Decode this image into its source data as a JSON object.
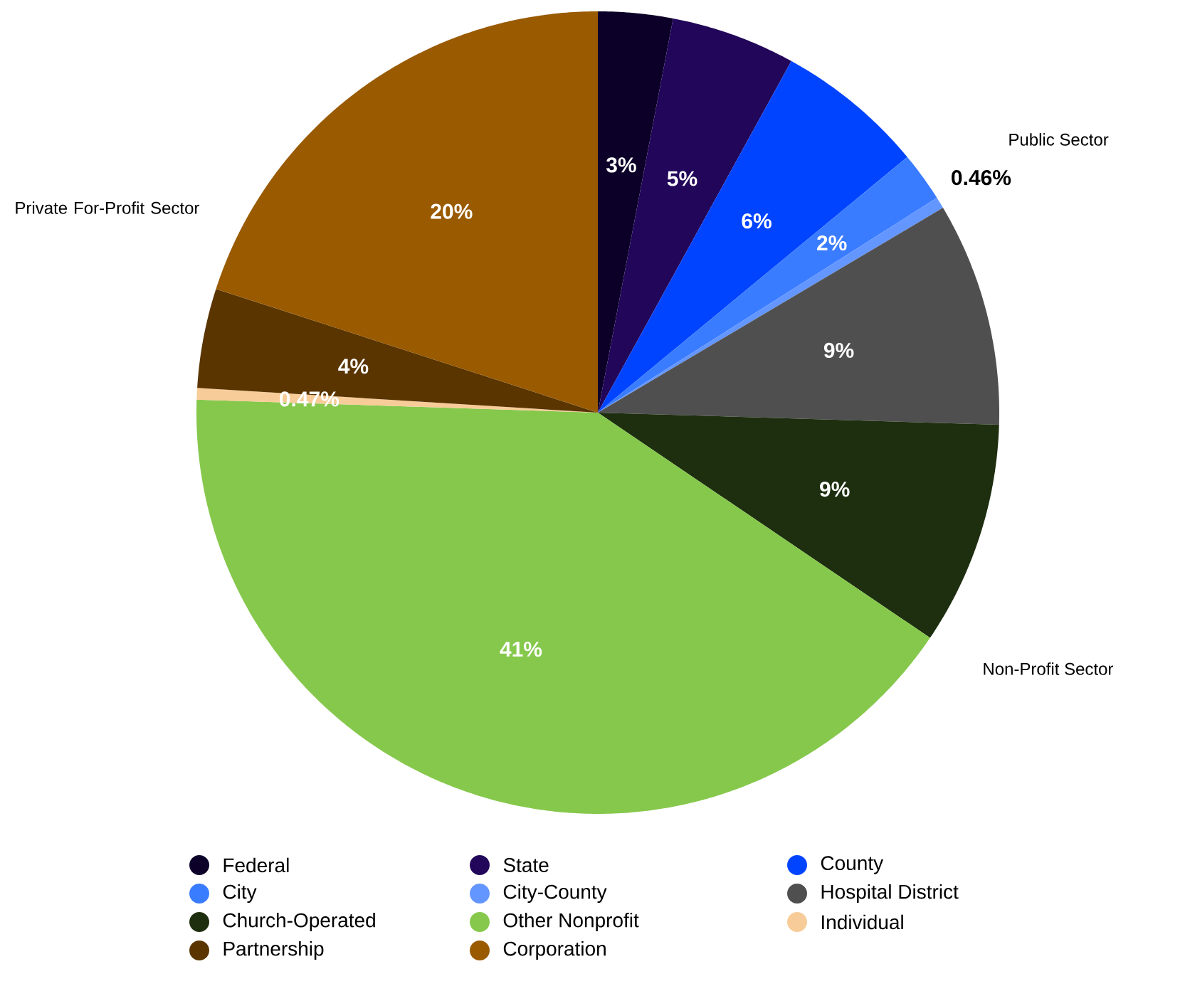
{
  "chart_data": {
    "type": "pie",
    "categories": [
      "Federal",
      "State",
      "County",
      "City",
      "City-County",
      "Hospital District",
      "Church-Operated",
      "Other Nonprofit",
      "Individual",
      "Partnership",
      "Corporation"
    ],
    "values": [
      3,
      5,
      6,
      2,
      0.46,
      9,
      9,
      41,
      0.47,
      4,
      20
    ],
    "value_labels": [
      "3%",
      "5%",
      "6%",
      "2%",
      "0.46%",
      "9%",
      "9%",
      "41%",
      "0.47%",
      "4%",
      "20%"
    ],
    "colors": [
      "#0c0028",
      "#22065a",
      "#0044ff",
      "#3a7cff",
      "#6496ff",
      "#4f4f4f",
      "#1e2f10",
      "#86c84c",
      "#f8cc98",
      "#5a3500",
      "#995a00"
    ],
    "annotations": [
      "Public Sector",
      "Non-Profit Sector",
      "Private For-Profit Sector"
    ],
    "legend": "bottom"
  }
}
